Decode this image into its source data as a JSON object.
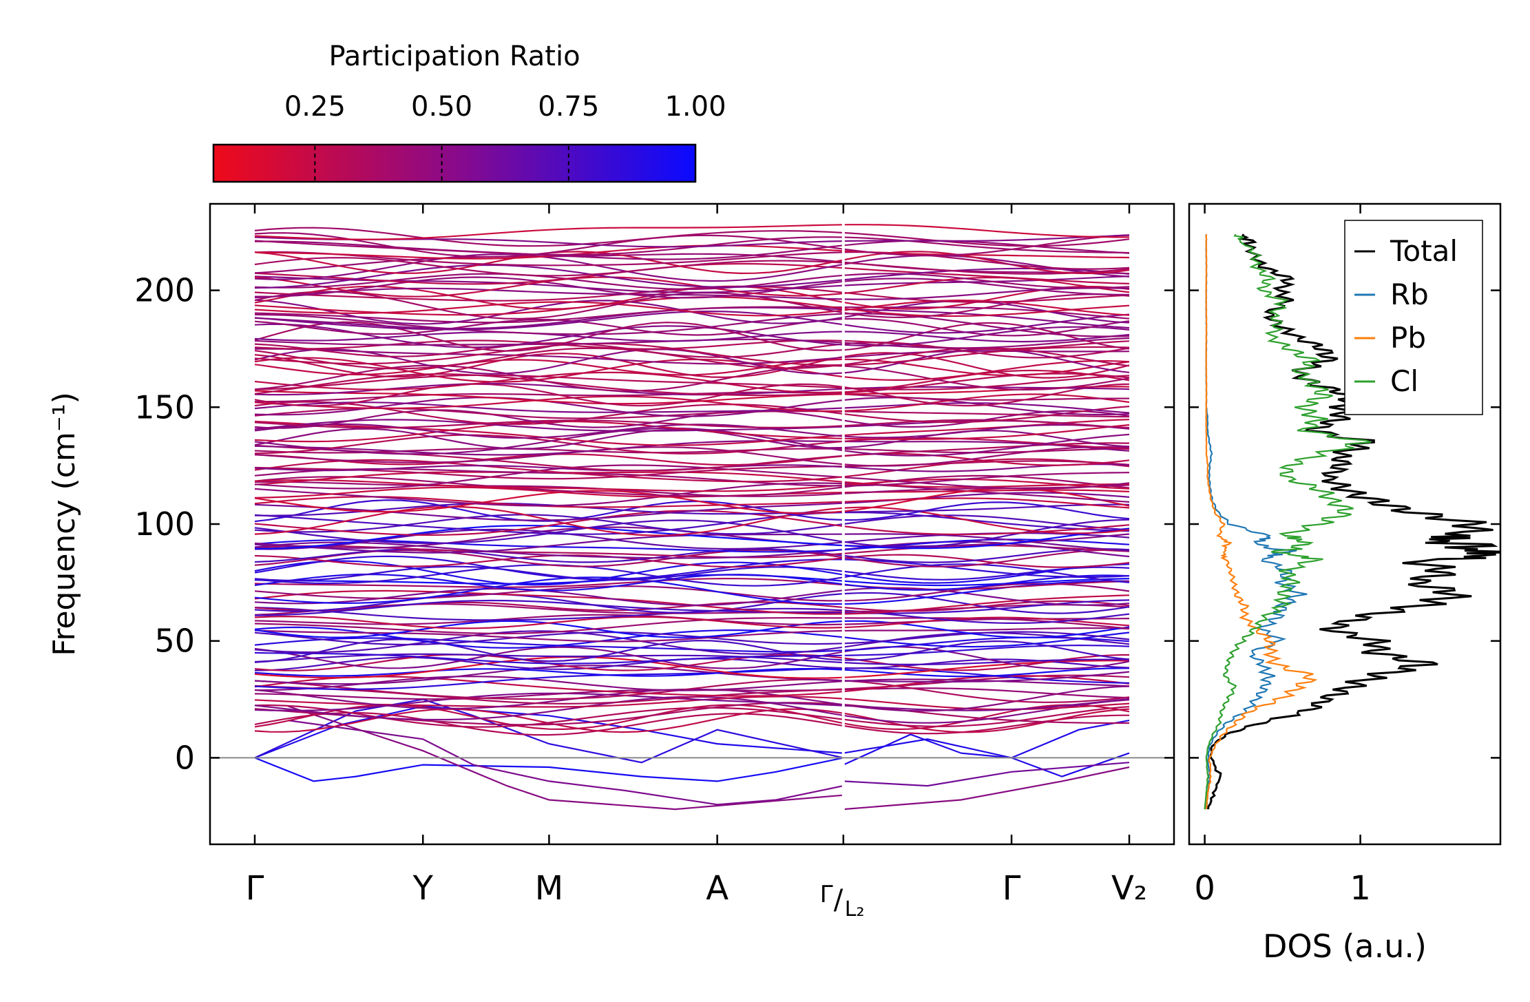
{
  "chart_data": [
    {
      "type": "line",
      "title": "",
      "ylabel": "Frequency (cm⁻¹)",
      "xlabel": "",
      "ylim": [
        -37,
        237
      ],
      "yticks": [
        0,
        50,
        100,
        150,
        200
      ],
      "k_points": [
        {
          "label": "Γ",
          "x": 0.0
        },
        {
          "label": "Y",
          "x": 1.0
        },
        {
          "label": "M",
          "x": 1.75
        },
        {
          "label": "A",
          "x": 2.75
        },
        {
          "label": "Γ",
          "sub": "/",
          "label2": "L₂",
          "x": 3.5
        },
        {
          "label": "Γ",
          "x": 4.5
        },
        {
          "label": "V₂",
          "x": 5.2
        }
      ],
      "segment_break": 3.5,
      "zero_line": 0,
      "description": "Phonon band structure; bands coloured by participation ratio (red = localized, blue = extended)",
      "band_range": {
        "min": -22,
        "max": 224
      },
      "colorbar": {
        "label": "Participation Ratio",
        "ticks": [
          "0.25",
          "0.50",
          "0.75",
          "1.00"
        ],
        "range": [
          0.05,
          1.0
        ],
        "cmap": [
          "#ee0a1a",
          "#0a0aff"
        ]
      }
    },
    {
      "type": "line",
      "title": "",
      "xlabel": "DOS (a.u.)",
      "ylabel": "",
      "xlim": [
        -0.1,
        1.9
      ],
      "xticks": [
        0,
        1
      ],
      "ylim": [
        -37,
        237
      ],
      "series": [
        {
          "name": "Total",
          "color": "#000000",
          "freq": [
            -22,
            -15,
            -8,
            0,
            5,
            10,
            15,
            20,
            25,
            30,
            35,
            40,
            45,
            50,
            55,
            60,
            65,
            70,
            75,
            80,
            85,
            88,
            92,
            95,
            100,
            105,
            110,
            115,
            120,
            125,
            130,
            135,
            140,
            145,
            150,
            155,
            160,
            165,
            170,
            175,
            180,
            185,
            190,
            195,
            200,
            205,
            210,
            215,
            220,
            224
          ],
          "dos": [
            0.02,
            0.06,
            0.1,
            0.04,
            0.05,
            0.15,
            0.35,
            0.6,
            0.75,
            1.0,
            1.2,
            1.4,
            1.0,
            1.05,
            0.85,
            1.1,
            1.4,
            1.5,
            1.25,
            1.6,
            1.5,
            1.8,
            1.65,
            1.55,
            1.6,
            1.35,
            1.2,
            0.95,
            0.75,
            0.8,
            0.85,
            1.15,
            0.75,
            0.85,
            0.8,
            0.9,
            0.75,
            0.65,
            0.8,
            0.7,
            0.55,
            0.5,
            0.45,
            0.55,
            0.45,
            0.5,
            0.38,
            0.35,
            0.3,
            0.25
          ]
        },
        {
          "name": "Rb",
          "color": "#1f77b4",
          "freq": [
            -22,
            -15,
            -8,
            0,
            5,
            10,
            15,
            20,
            25,
            30,
            35,
            40,
            45,
            50,
            55,
            60,
            65,
            70,
            75,
            80,
            85,
            88,
            92,
            95,
            100,
            105,
            110,
            115,
            120,
            125,
            130,
            135,
            140,
            145,
            150,
            155,
            160,
            165,
            170,
            175,
            180,
            185,
            190,
            195,
            200,
            205,
            210,
            215,
            220,
            224
          ],
          "dos": [
            0.01,
            0.02,
            0.03,
            0.02,
            0.03,
            0.08,
            0.15,
            0.25,
            0.3,
            0.38,
            0.45,
            0.4,
            0.28,
            0.45,
            0.35,
            0.5,
            0.55,
            0.6,
            0.45,
            0.5,
            0.4,
            0.55,
            0.3,
            0.4,
            0.15,
            0.08,
            0.05,
            0.04,
            0.03,
            0.03,
            0.04,
            0.03,
            0.02,
            0.02,
            0.01,
            0.01,
            0.01,
            0.01,
            0.01,
            0.01,
            0.01,
            0.01,
            0.01,
            0.01,
            0.01,
            0.01,
            0.01,
            0.01,
            0.01,
            0.01
          ]
        },
        {
          "name": "Pb",
          "color": "#ff7f0e",
          "freq": [
            -22,
            -15,
            -8,
            0,
            5,
            10,
            15,
            20,
            25,
            30,
            35,
            40,
            45,
            50,
            55,
            60,
            65,
            70,
            75,
            80,
            85,
            88,
            92,
            95,
            100,
            105,
            110,
            115,
            120,
            125,
            130,
            135,
            140,
            145,
            150,
            155,
            160,
            165,
            170,
            175,
            180,
            185,
            190,
            195,
            200,
            205,
            210,
            215,
            220,
            224
          ],
          "dos": [
            0.01,
            0.02,
            0.04,
            0.03,
            0.06,
            0.12,
            0.22,
            0.3,
            0.45,
            0.55,
            0.7,
            0.5,
            0.45,
            0.4,
            0.3,
            0.25,
            0.28,
            0.22,
            0.18,
            0.15,
            0.13,
            0.12,
            0.15,
            0.1,
            0.12,
            0.06,
            0.04,
            0.03,
            0.02,
            0.02,
            0.01,
            0.01,
            0.01,
            0.01,
            0.01,
            0.01,
            0.01,
            0.01,
            0.01,
            0.01,
            0.01,
            0.01,
            0.01,
            0.01,
            0.01,
            0.01,
            0.01,
            0.01,
            0.01,
            0.01
          ]
        },
        {
          "name": "Cl",
          "color": "#2ca02c",
          "freq": [
            -22,
            -15,
            -8,
            0,
            5,
            10,
            15,
            20,
            25,
            30,
            35,
            40,
            45,
            50,
            55,
            60,
            65,
            70,
            75,
            80,
            85,
            88,
            92,
            95,
            100,
            105,
            110,
            115,
            120,
            125,
            130,
            135,
            140,
            145,
            150,
            155,
            160,
            165,
            170,
            175,
            180,
            185,
            190,
            195,
            200,
            205,
            210,
            215,
            220,
            224
          ],
          "dos": [
            0.0,
            0.01,
            0.02,
            0.01,
            0.02,
            0.05,
            0.1,
            0.12,
            0.15,
            0.18,
            0.12,
            0.15,
            0.2,
            0.25,
            0.3,
            0.35,
            0.5,
            0.55,
            0.6,
            0.5,
            0.65,
            0.45,
            0.7,
            0.55,
            0.8,
            0.9,
            0.75,
            0.7,
            0.55,
            0.6,
            0.75,
            0.95,
            0.6,
            0.75,
            0.7,
            0.8,
            0.65,
            0.55,
            0.7,
            0.6,
            0.45,
            0.45,
            0.4,
            0.5,
            0.4,
            0.45,
            0.32,
            0.3,
            0.25,
            0.2
          ]
        }
      ],
      "legend_position": "top-right"
    }
  ]
}
